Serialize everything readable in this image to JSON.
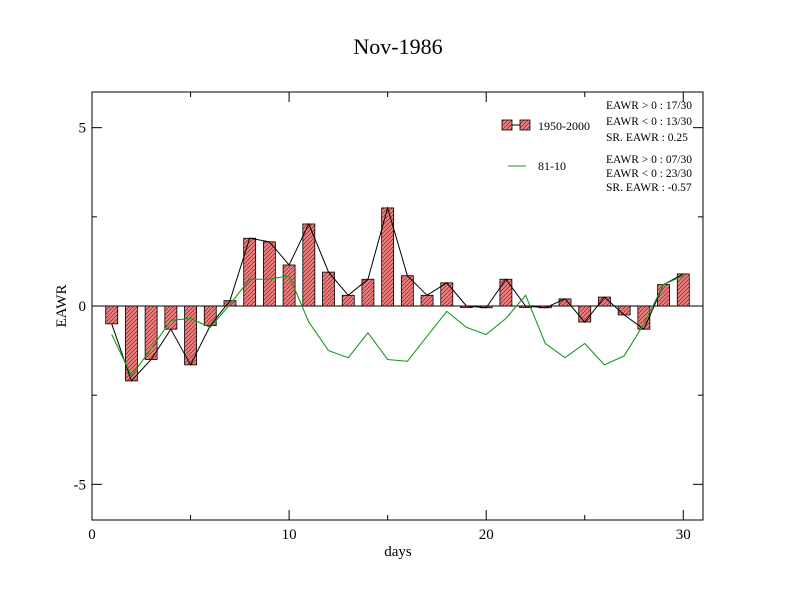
{
  "chart_data": {
    "type": "bar",
    "title": "Nov-1986",
    "xlabel": "days",
    "ylabel": "EAWR",
    "xlim": [
      0,
      31
    ],
    "ylim": [
      -6,
      6
    ],
    "xticks": [
      0,
      10,
      20,
      30
    ],
    "yticks": [
      -5,
      0,
      5
    ],
    "legend_position": "top-right",
    "series": [
      {
        "name": "1950-2000",
        "kind": "bar",
        "color": "#f08080",
        "x": [
          1,
          2,
          3,
          4,
          5,
          6,
          7,
          8,
          9,
          10,
          11,
          12,
          13,
          14,
          15,
          16,
          17,
          18,
          19,
          20,
          21,
          22,
          23,
          24,
          25,
          26,
          27,
          28,
          29,
          30
        ],
        "values": [
          -0.5,
          -2.1,
          -1.5,
          -0.65,
          -1.65,
          -0.55,
          0.15,
          1.9,
          1.8,
          1.15,
          2.3,
          0.95,
          0.3,
          0.75,
          2.75,
          0.85,
          0.3,
          0.65,
          0.0,
          -0.05,
          0.75,
          0.0,
          -0.05,
          0.2,
          -0.45,
          0.25,
          -0.25,
          -0.65,
          0.6,
          0.9
        ]
      },
      {
        "name": "81-10",
        "kind": "line",
        "color": "#1a9a1a",
        "x": [
          1,
          2,
          3,
          4,
          5,
          6,
          7,
          8,
          9,
          10,
          11,
          12,
          13,
          14,
          15,
          16,
          17,
          18,
          19,
          20,
          21,
          22,
          23,
          24,
          25,
          26,
          27,
          28,
          29,
          30
        ],
        "values": [
          -0.8,
          -1.95,
          -1.2,
          -0.4,
          -0.35,
          -0.6,
          0.05,
          0.75,
          0.75,
          0.85,
          -0.45,
          -1.25,
          -1.45,
          -0.75,
          -1.5,
          -1.55,
          -0.85,
          -0.15,
          -0.6,
          -0.8,
          -0.35,
          0.3,
          -1.05,
          -1.45,
          -1.05,
          -1.65,
          -1.4,
          -0.5,
          0.6,
          0.85
        ]
      }
    ],
    "stats_1950_2000": [
      "EAWR > 0 : 17/30",
      "EAWR < 0 : 13/30",
      "SR. EAWR :  0.25"
    ],
    "stats_81_10": [
      "EAWR > 0 : 07/30",
      "EAWR < 0 : 23/30",
      "SR. EAWR : -0.57"
    ]
  }
}
